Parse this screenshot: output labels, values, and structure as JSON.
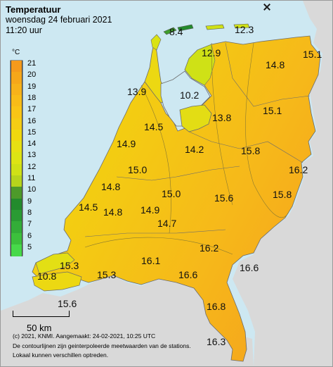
{
  "header": {
    "title": "Temperatuur",
    "date": "woensdag 24 februari 2021",
    "time": "11:20 uur"
  },
  "legend": {
    "unit": "°C",
    "steps": [
      {
        "label": "21",
        "color": "#f59a1c"
      },
      {
        "label": "20",
        "color": "#f6a71a"
      },
      {
        "label": "19",
        "color": "#f7b21a"
      },
      {
        "label": "18",
        "color": "#f8bc18"
      },
      {
        "label": "17",
        "color": "#f9c516"
      },
      {
        "label": "16",
        "color": "#f5cd14"
      },
      {
        "label": "15",
        "color": "#f0d80e"
      },
      {
        "label": "14",
        "color": "#e7e012"
      },
      {
        "label": "13",
        "color": "#dde414"
      },
      {
        "label": "12",
        "color": "#cfe116"
      },
      {
        "label": "11",
        "color": "#b6d41c"
      },
      {
        "label": "10",
        "color": "#4d9a2a"
      },
      {
        "label": "9",
        "color": "#238b2d"
      },
      {
        "label": "8",
        "color": "#2a9b33"
      },
      {
        "label": "7",
        "color": "#33ad38"
      },
      {
        "label": "6",
        "color": "#3cc03c"
      },
      {
        "label": "5",
        "color": "#47d94a"
      }
    ]
  },
  "temperatures": [
    {
      "value": "8.4"
    },
    {
      "value": "12.3"
    },
    {
      "value": "12.9"
    },
    {
      "value": "15.1"
    },
    {
      "value": "14.8"
    },
    {
      "value": "13.9"
    },
    {
      "value": "10.2"
    },
    {
      "value": "13.8"
    },
    {
      "value": "15.1"
    },
    {
      "value": "14.5"
    },
    {
      "value": "14.9"
    },
    {
      "value": "14.2"
    },
    {
      "value": "15.8"
    },
    {
      "value": "15.0"
    },
    {
      "value": "16.2"
    },
    {
      "value": "14.8"
    },
    {
      "value": "15.0"
    },
    {
      "value": "15.6"
    },
    {
      "value": "15.8"
    },
    {
      "value": "14.5"
    },
    {
      "value": "14.8"
    },
    {
      "value": "14.9"
    },
    {
      "value": "14.7"
    },
    {
      "value": "16.2"
    },
    {
      "value": "15.3"
    },
    {
      "value": "16.1"
    },
    {
      "value": "16.6"
    },
    {
      "value": "10.8"
    },
    {
      "value": "15.3"
    },
    {
      "value": "16.6"
    },
    {
      "value": "15.6"
    },
    {
      "value": "16.8"
    },
    {
      "value": "16.3"
    }
  ],
  "scale": {
    "label": "50 km"
  },
  "footer": {
    "line1": "(c) 2021, KNMI. Aangemaakt: 24-02-2021, 10:25 UTC",
    "line2": "De contourlijnen zijn geinterpoleerde meetwaarden van de stations.",
    "line3": "Lokaal kunnen verschillen optreden."
  },
  "colors": {
    "sea": "#cde8f2",
    "foreign_land": "#d9d9d9",
    "land_warm": "#f5b21a",
    "land_mid": "#f1cf12",
    "land_cool": "#dde414",
    "island_cold": "#2e8b2e"
  }
}
